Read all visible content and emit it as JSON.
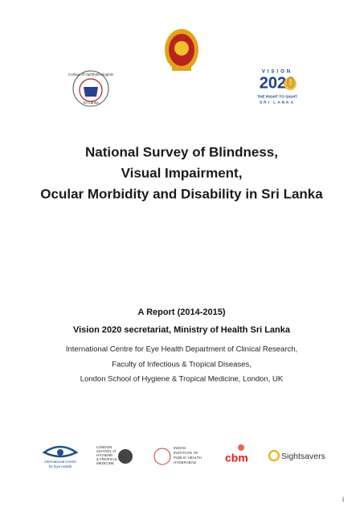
{
  "header": {
    "college": {
      "lines": [
        "College of Ophthalmologists",
        "Sri Lanka"
      ]
    },
    "vision2020": {
      "lines": [
        "VISION",
        "2020",
        "THE RIGHT TO SIGHT",
        "SRI LANKA"
      ]
    }
  },
  "title": {
    "lines": [
      "National Survey of Blindness,",
      "Visual Impairment,",
      "Ocular Morbidity and Disability in Sri Lanka"
    ]
  },
  "report": {
    "period": "A Report (2014-2015)",
    "secretariat": "Vision 2020 secretariat, Ministry of Health Sri Lanka",
    "affiliation": [
      "International Centre for Eye Health Department of Clinical Research,",
      "Faculty of Infectious & Tropical Diseases,",
      "London School of Hygiene & Tropical Medicine, London, UK"
    ]
  },
  "partners": [
    {
      "lines": [
        "International Centre",
        "for Eye Health"
      ]
    },
    {
      "lines": [
        "LONDON",
        "SCHOOL of",
        "HYGIENE",
        "& TROPICAL",
        "MEDICINE"
      ]
    },
    {
      "lines": [
        "INDIAN",
        "INSTITUTE OF",
        "PUBLIC HEALTH",
        "HYDERABAD"
      ]
    },
    {
      "lines": [
        "cbm"
      ]
    },
    {
      "lines": [
        "Sightsavers"
      ]
    }
  ],
  "page_number": "i"
}
